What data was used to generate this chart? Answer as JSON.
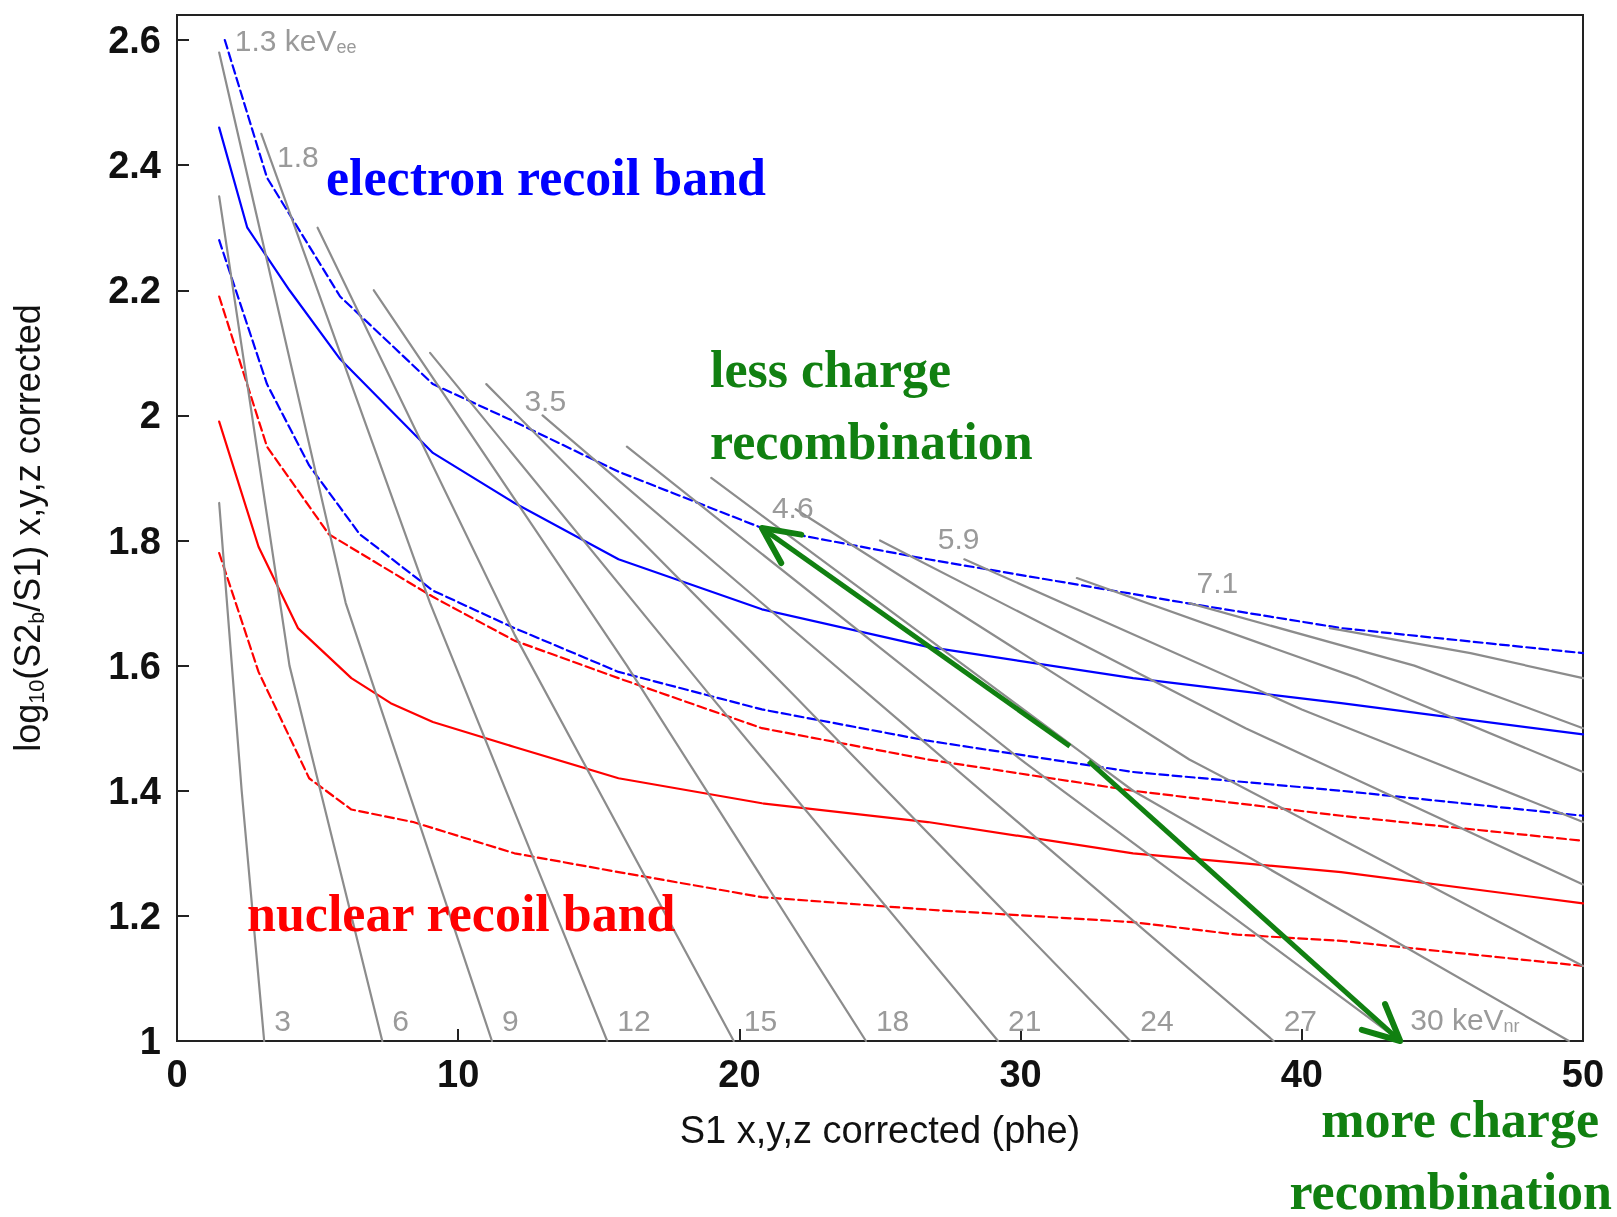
{
  "chart_data": {
    "type": "line",
    "xlabel": "S1 x,y,z corrected (phe)",
    "ylabel": "log$_{10}$(S2$_{b}$/S1) x,y,z corrected",
    "xlim": [
      0,
      50
    ],
    "xticks": [
      0,
      10,
      20,
      30,
      40,
      50
    ],
    "ylim": [
      1,
      2.64
    ],
    "yticks": [
      1,
      1.2,
      1.4,
      1.6,
      1.8,
      2,
      2.2,
      2.4,
      2.6
    ],
    "marker": "none",
    "series": [
      {
        "color": "#0000ff",
        "line_style": "dashed",
        "x": [
          1.7,
          3.2,
          5.8,
          9.1,
          12,
          15.7,
          20.8,
          26.7,
          35.9,
          41.4,
          50
        ],
        "values": [
          2.6,
          2.38,
          2.19,
          2.05,
          1.99,
          1.91,
          1.82,
          1.77,
          1.7,
          1.66,
          1.62
        ]
      },
      {
        "color": "#0000ff",
        "line_style": "solid",
        "x": [
          1.5,
          2.5,
          4,
          5.8,
          9.1,
          12,
          15.7,
          20.8,
          26.7,
          34,
          41.4,
          50
        ],
        "values": [
          2.46,
          2.3,
          2.2,
          2.09,
          1.94,
          1.86,
          1.77,
          1.69,
          1.63,
          1.58,
          1.54,
          1.49
        ]
      },
      {
        "color": "#0000ff",
        "line_style": "dashed",
        "x": [
          1.5,
          3.2,
          4.7,
          6.5,
          9.1,
          12,
          15.7,
          20.8,
          26.7,
          34,
          41.4,
          50
        ],
        "values": [
          2.28,
          2.05,
          1.92,
          1.81,
          1.72,
          1.66,
          1.59,
          1.53,
          1.48,
          1.43,
          1.4,
          1.36
        ]
      },
      {
        "color": "#ff0000",
        "line_style": "dashed",
        "x": [
          1.5,
          3.2,
          5.4,
          9.1,
          12,
          15.7,
          20.8,
          26.7,
          34,
          41.4,
          50
        ],
        "values": [
          2.19,
          1.95,
          1.81,
          1.71,
          1.64,
          1.58,
          1.5,
          1.45,
          1.4,
          1.36,
          1.32
        ]
      },
      {
        "color": "#ff0000",
        "line_style": "solid",
        "x": [
          1.5,
          2.9,
          4.3,
          6.2,
          7.6,
          9.1,
          12,
          15.7,
          20.8,
          26.7,
          34,
          41.4,
          50
        ],
        "values": [
          1.99,
          1.79,
          1.66,
          1.58,
          1.54,
          1.51,
          1.47,
          1.42,
          1.38,
          1.35,
          1.3,
          1.27,
          1.22
        ]
      },
      {
        "color": "#ff0000",
        "line_style": "dashed",
        "x": [
          1.5,
          2.9,
          4.7,
          6.2,
          8.4,
          12,
          15.7,
          20.8,
          26.7,
          34,
          37.7,
          41.4,
          50
        ],
        "values": [
          1.78,
          1.59,
          1.42,
          1.37,
          1.35,
          1.3,
          1.27,
          1.23,
          1.21,
          1.19,
          1.17,
          1.16,
          1.12
        ]
      },
      {
        "color": "#8c8c8c",
        "line_style": "solid",
        "x": [
          1.5,
          2.3,
          3.1
        ],
        "values": [
          1.86,
          1.4,
          1.0
        ]
      },
      {
        "color": "#8c8c8c",
        "line_style": "solid",
        "x": [
          1.5,
          4,
          7.3
        ],
        "values": [
          2.35,
          1.6,
          1.0
        ]
      },
      {
        "color": "#8c8c8c",
        "line_style": "solid",
        "x": [
          1.5,
          6,
          11.2
        ],
        "values": [
          2.58,
          1.7,
          1.0
        ]
      },
      {
        "color": "#8c8c8c",
        "line_style": "solid",
        "x": [
          3,
          9,
          15.3
        ],
        "values": [
          2.45,
          1.7,
          1.0
        ]
      },
      {
        "color": "#8c8c8c",
        "line_style": "solid",
        "x": [
          5,
          12,
          19.8
        ],
        "values": [
          2.3,
          1.65,
          1.0
        ]
      },
      {
        "color": "#8c8c8c",
        "line_style": "solid",
        "x": [
          7,
          16,
          24.5
        ],
        "values": [
          2.2,
          1.6,
          1.0
        ]
      },
      {
        "color": "#8c8c8c",
        "line_style": "solid",
        "x": [
          9,
          19,
          29.2
        ],
        "values": [
          2.1,
          1.55,
          1.0
        ]
      },
      {
        "color": "#8c8c8c",
        "line_style": "solid",
        "x": [
          11,
          22,
          33.9
        ],
        "values": [
          2.05,
          1.55,
          1.0
        ]
      },
      {
        "color": "#8c8c8c",
        "line_style": "solid",
        "x": [
          13,
          26,
          39
        ],
        "values": [
          2.0,
          1.5,
          1.0
        ]
      },
      {
        "color": "#8c8c8c",
        "line_style": "solid",
        "x": [
          16,
          30,
          43.5
        ],
        "values": [
          1.95,
          1.45,
          1.0
        ]
      },
      {
        "color": "#8c8c8c",
        "line_style": "solid",
        "x": [
          19,
          34,
          49.5
        ],
        "values": [
          1.9,
          1.4,
          1.0
        ]
      },
      {
        "color": "#8c8c8c",
        "line_style": "solid",
        "x": [
          22,
          36,
          50
        ],
        "values": [
          1.85,
          1.45,
          1.12
        ]
      },
      {
        "color": "#8c8c8c",
        "line_style": "solid",
        "x": [
          25,
          38,
          50
        ],
        "values": [
          1.8,
          1.5,
          1.25
        ]
      },
      {
        "color": "#8c8c8c",
        "line_style": "solid",
        "x": [
          28,
          40,
          50
        ],
        "values": [
          1.77,
          1.53,
          1.35
        ]
      },
      {
        "color": "#8c8c8c",
        "line_style": "solid",
        "x": [
          32,
          42,
          50
        ],
        "values": [
          1.74,
          1.58,
          1.43
        ]
      },
      {
        "color": "#8c8c8c",
        "line_style": "solid",
        "x": [
          36,
          44,
          50
        ],
        "values": [
          1.7,
          1.6,
          1.5
        ]
      },
      {
        "color": "#8c8c8c",
        "line_style": "solid",
        "x": [
          41,
          46,
          50
        ],
        "values": [
          1.66,
          1.62,
          1.58
        ]
      }
    ],
    "annotations": [
      "electron recoil band",
      {
        "text": "less charge recombination",
        "x": 20.8,
        "y": 1.82
      },
      "nuclear recoil band",
      {
        "text": "more charge recombination",
        "x": 43.5,
        "y": 1.0
      },
      {
        "text": "1.3 keV$_{ee}$",
        "x": 1.7,
        "y": 2.6
      },
      {
        "text": "1.8",
        "x": 3.2,
        "y": 2.38
      },
      {
        "text": "3.5",
        "x": 12,
        "y": 1.99
      },
      {
        "text": "4.6",
        "x": 20.8,
        "y": 1.82
      },
      {
        "text": "5.9",
        "x": 26.7,
        "y": 1.77
      },
      {
        "text": "7.1",
        "x": 35.9,
        "y": 1.7
      },
      {
        "text": "3",
        "x": 3.1,
        "y": 1.0
      },
      {
        "text": "6",
        "x": 7.3,
        "y": 1.0
      },
      {
        "text": "9",
        "x": 11.2,
        "y": 1.0
      },
      {
        "text": "12",
        "x": 15.3,
        "y": 1.0
      },
      {
        "text": "15",
        "x": 19.8,
        "y": 1.0
      },
      {
        "text": "18",
        "x": 24.5,
        "y": 1.0
      },
      {
        "text": "21",
        "x": 29.2,
        "y": 1.0
      },
      {
        "text": "24",
        "x": 33.9,
        "y": 1.0
      },
      {
        "text": "27",
        "x": 39,
        "y": 1.0
      },
      {
        "text": "30 keV$_{nr}$",
        "x": 43.5,
        "y": 1.0
      }
    ]
  }
}
